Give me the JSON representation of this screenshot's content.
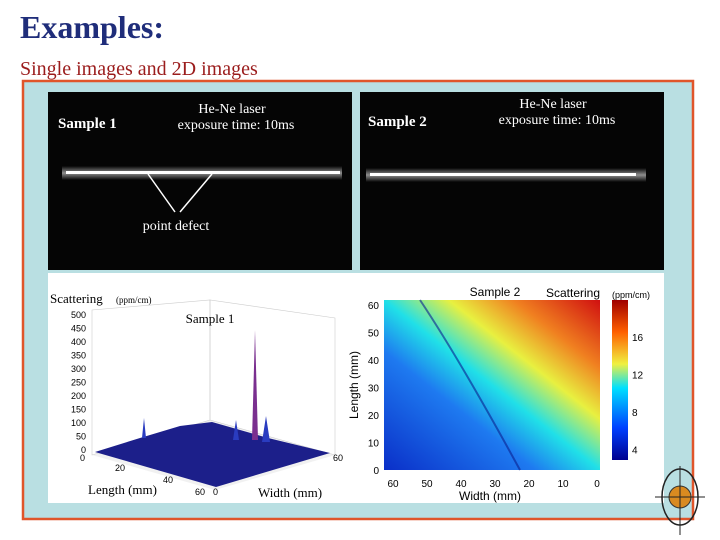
{
  "header": {
    "title": "Examples:",
    "subtitle": "Single images and 2D images"
  },
  "photo_1": {
    "sample": "Sample 1",
    "laser": "He-Ne laser",
    "exposure": "exposure time: 10ms",
    "annotation": "point defect"
  },
  "photo_2": {
    "sample": "Sample 2",
    "laser": "He-Ne laser",
    "exposure": "exposure time: 10ms"
  },
  "plot_3d": {
    "title": "Sample 1",
    "z_label": "Scattering",
    "z_unit": "(ppm/cm)",
    "z_ticks": [
      "500",
      "450",
      "400",
      "350",
      "300",
      "250",
      "200",
      "150",
      "100",
      "50",
      "0"
    ],
    "length_label": "Length (mm)",
    "length_ticks": [
      "0",
      "20",
      "40",
      "60"
    ],
    "width_label": "Width (mm)",
    "width_ticks": [
      "0",
      "60"
    ]
  },
  "heatmap": {
    "title": "Sample 2",
    "colorbar_label": "Scattering",
    "colorbar_unit": "(ppm/cm)",
    "colorbar_ticks": [
      "16",
      "12",
      "8",
      "4"
    ],
    "y_label": "Length (mm)",
    "y_ticks": [
      "60",
      "50",
      "40",
      "30",
      "20",
      "10",
      "0"
    ],
    "x_label": "Width (mm)",
    "x_ticks": [
      "60",
      "50",
      "40",
      "30",
      "20",
      "10",
      "0"
    ]
  }
}
